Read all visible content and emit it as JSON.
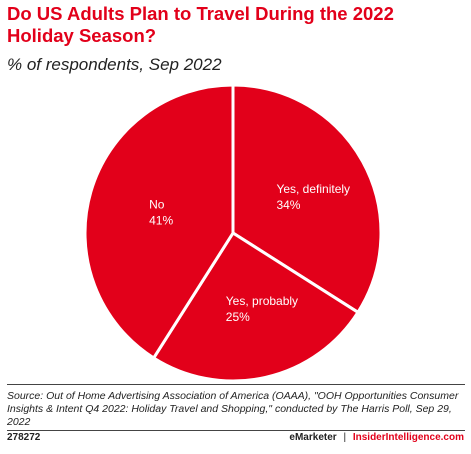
{
  "header": {
    "title": "Do US Adults Plan to Travel During the 2022 Holiday Season?",
    "subtitle": "% of respondents, Sep 2022"
  },
  "chart_data": {
    "type": "pie",
    "title": "Do US Adults Plan to Travel During the 2022 Holiday Season?",
    "subtitle": "% of respondents, Sep 2022",
    "slices": [
      {
        "label": "Yes, definitely",
        "value": 34,
        "value_label": "34%",
        "color": "#e2001a"
      },
      {
        "label": "Yes, probably",
        "value": 25,
        "value_label": "25%",
        "color": "#e2001a"
      },
      {
        "label": "No",
        "value": 41,
        "value_label": "41%",
        "color": "#e2001a"
      }
    ],
    "slice_border_color": "#ffffff",
    "start_angle": "12 o'clock",
    "direction": "clockwise"
  },
  "footer": {
    "source": "Source: Out of Home Advertising Association of America (OAAA), \"OOH Opportunities Consumer Insights & Intent Q4 2022: Holiday Travel and Shopping,\" conducted by The Harris Poll, Sep 29, 2022",
    "chart_id": "278272",
    "brand_emarketer": "eMarketer",
    "brand_separator": "|",
    "brand_insider": "InsiderIntelligence.com"
  }
}
